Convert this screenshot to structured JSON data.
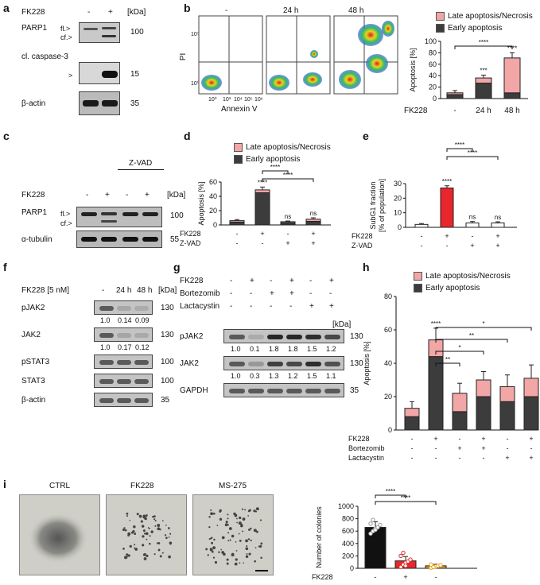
{
  "panels": {
    "a": "a",
    "b": "b",
    "c": "c",
    "d": "d",
    "e": "e",
    "f": "f",
    "g": "g",
    "h": "h",
    "i": "i"
  },
  "a": {
    "treatment_label": "FK228",
    "col_minus": "-",
    "col_plus": "+",
    "kda": "[kDa]",
    "rows": [
      {
        "name": "PARP1",
        "mw": "100"
      },
      {
        "name": "cl. caspase-3",
        "mw": "15"
      },
      {
        "name": "β-actin",
        "mw": "35"
      }
    ],
    "fl": "fl.>",
    "cf": "cf.>",
    "arrow": ">"
  },
  "b": {
    "col_labels": [
      "-",
      "24 h",
      "48 h"
    ],
    "ylabel": "PI",
    "xlabel": "Annexin V",
    "tick_lo": "10⁰",
    "tick_a": "10³",
    "tick_b": "10⁴",
    "tick_c": "10⁵",
    "tick_d": "10⁶",
    "y_tick_lo": "10⁰",
    "y_tick_hi": "10⁵"
  },
  "c": {
    "zvad": "Z-VAD",
    "treatment_label": "FK228",
    "kda": "[kDa]",
    "signs": [
      "-",
      "+",
      "-",
      "+"
    ],
    "rows": [
      {
        "name": "PARP1",
        "mw": "100"
      },
      {
        "name": "α-tubulin",
        "mw": "55"
      }
    ],
    "fl": "fl.>",
    "cf": "cf.>"
  },
  "f": {
    "header": "FK228 [5 nM]",
    "cols": [
      "-",
      "24 h",
      "48 h"
    ],
    "kda": "[kDa]",
    "rows": [
      {
        "name": "pJAK2",
        "mw": "130",
        "quant": [
          "1.0",
          "0.14",
          "0.09"
        ]
      },
      {
        "name": "JAK2",
        "mw": "130",
        "quant": [
          "1.0",
          "0.17",
          "0.12"
        ]
      },
      {
        "name": "pSTAT3",
        "mw": "100",
        "quant": []
      },
      {
        "name": "STAT3",
        "mw": "100",
        "quant": []
      },
      {
        "name": "β-actin",
        "mw": "35",
        "quant": []
      }
    ]
  },
  "g": {
    "treatments": [
      {
        "name": "FK228",
        "signs": [
          "-",
          "+",
          "-",
          "+",
          "-",
          "+"
        ]
      },
      {
        "name": "Bortezomib",
        "signs": [
          "-",
          "-",
          "+",
          "+",
          "-",
          "-"
        ]
      },
      {
        "name": "Lactacystin",
        "signs": [
          "-",
          "-",
          "-",
          "-",
          "+",
          "+"
        ]
      }
    ],
    "kda": "[kDa]",
    "rows": [
      {
        "name": "pJAK2",
        "mw": "130",
        "quant": [
          "1.0",
          "0.1",
          "1.8",
          "1.8",
          "1.5",
          "1.2"
        ]
      },
      {
        "name": "JAK2",
        "mw": "130",
        "quant": [
          "1.0",
          "0.3",
          "1.3",
          "1.2",
          "1.5",
          "1.1"
        ]
      },
      {
        "name": "GAPDH",
        "mw": "35",
        "quant": []
      }
    ]
  },
  "i": {
    "images": [
      "CTRL",
      "FK228",
      "MS-275"
    ]
  },
  "legend": {
    "late": "Late apoptosis/Necrosis",
    "early": "Early apoptosis"
  },
  "colors": {
    "late": "#f2a6a6",
    "early": "#3c3c3c",
    "red": "#e8262b",
    "white_bar": "#ffffff",
    "orange_pts": "#e8a020",
    "red_pts": "#d83030"
  },
  "chart_data": [
    {
      "id": "b",
      "type": "bar",
      "stacked": true,
      "ylabel": "Apoptosis [%]",
      "ylim": [
        0,
        100
      ],
      "yticks": [
        0,
        20,
        40,
        60,
        80,
        100
      ],
      "categories": [
        "-",
        "24 h",
        "48 h"
      ],
      "row_label": "FK228",
      "series": [
        {
          "name": "Early apoptosis",
          "values": [
            7,
            27,
            10
          ]
        },
        {
          "name": "Late apoptosis/Necrosis",
          "values": [
            3,
            9,
            61
          ]
        }
      ],
      "errors": [
        4,
        5,
        9
      ],
      "annotations": [
        {
          "text": "***",
          "bar": 1
        },
        {
          "text": "****",
          "bar": 2
        }
      ],
      "brackets": [
        {
          "from": 0,
          "to": 2,
          "text": "****"
        }
      ]
    },
    {
      "id": "d",
      "type": "bar",
      "stacked": true,
      "ylabel": "Apoptosis [%]",
      "ylim": [
        0,
        60
      ],
      "yticks": [
        0,
        20,
        40,
        60
      ],
      "rows": [
        {
          "name": "FK228",
          "signs": [
            "-",
            "+",
            "-",
            "+"
          ]
        },
        {
          "name": "Z-VAD",
          "signs": [
            "-",
            "-",
            "+",
            "+"
          ]
        }
      ],
      "series": [
        {
          "name": "Early apoptosis",
          "values": [
            4,
            45,
            3,
            5
          ]
        },
        {
          "name": "Late apoptosis/Necrosis",
          "values": [
            2,
            4,
            1.5,
            3
          ]
        }
      ],
      "errors": [
        1.5,
        4,
        1,
        2
      ],
      "annotations": [
        {
          "text": "****",
          "bar": 1
        },
        {
          "text": "ns",
          "bar": 2
        },
        {
          "text": "ns",
          "bar": 3
        }
      ],
      "brackets": [
        {
          "from": 1,
          "to": 2,
          "text": "****"
        },
        {
          "from": 1,
          "to": 3,
          "text": "****"
        }
      ]
    },
    {
      "id": "e",
      "type": "bar",
      "stacked": false,
      "ylabel": "SubG1 fraction [% of population]",
      "ylim": [
        0,
        30
      ],
      "yticks": [
        0,
        10,
        20,
        30
      ],
      "rows": [
        {
          "name": "FK228",
          "signs": [
            "-",
            "+",
            "-",
            "+"
          ]
        },
        {
          "name": "Z-VAD",
          "signs": [
            "-",
            "-",
            "+",
            "+"
          ]
        }
      ],
      "values": [
        2,
        27,
        3,
        3
      ],
      "errors": [
        0.6,
        1.5,
        1,
        0.8
      ],
      "annotations": [
        {
          "text": "****",
          "bar": 1
        },
        {
          "text": "ns",
          "bar": 2
        },
        {
          "text": "ns",
          "bar": 3
        }
      ],
      "brackets": [
        {
          "from": 1,
          "to": 2,
          "text": "****"
        },
        {
          "from": 1,
          "to": 3,
          "text": "****"
        }
      ]
    },
    {
      "id": "h",
      "type": "bar",
      "stacked": true,
      "ylabel": "Apoptosis [%]",
      "ylim": [
        0,
        80
      ],
      "yticks": [
        0,
        20,
        40,
        60,
        80
      ],
      "rows": [
        {
          "name": "FK228",
          "signs": [
            "-",
            "+",
            "-",
            "+",
            "-",
            "+"
          ]
        },
        {
          "name": "Bortezomib",
          "signs": [
            "-",
            "-",
            "+",
            "+",
            "-",
            "-"
          ]
        },
        {
          "name": "Lactacystin",
          "signs": [
            "-",
            "-",
            "-",
            "-",
            "+",
            "+"
          ]
        }
      ],
      "series": [
        {
          "name": "Early apoptosis",
          "values": [
            8,
            44,
            11,
            20,
            17,
            20
          ]
        },
        {
          "name": "Late apoptosis/Necrosis",
          "values": [
            5,
            10,
            11,
            10,
            9,
            11
          ]
        }
      ],
      "errors": [
        4,
        7,
        6,
        5,
        7,
        8
      ],
      "annotations": [
        {
          "text": "****",
          "bar": 1
        }
      ],
      "brackets": [
        {
          "from": 1,
          "to": 2,
          "text": "**"
        },
        {
          "from": 1,
          "to": 3,
          "text": "*"
        },
        {
          "from": 1,
          "to": 4,
          "text": "**"
        },
        {
          "from": 1,
          "to": 5,
          "text": "*"
        }
      ]
    },
    {
      "id": "i",
      "type": "bar",
      "stacked": false,
      "ylabel": "Number of colonies",
      "ylim": [
        0,
        1000
      ],
      "yticks": [
        0,
        200,
        400,
        600,
        800,
        1000
      ],
      "rows": [
        {
          "name": "FK228",
          "signs": [
            "-",
            "+",
            "-"
          ]
        }
      ],
      "values": [
        660,
        120,
        40
      ],
      "errors": [
        90,
        70,
        25
      ],
      "points": [
        [
          560,
          600,
          640,
          660,
          700,
          720,
          780,
          620
        ],
        [
          20,
          60,
          90,
          110,
          140,
          200,
          250,
          40
        ],
        [
          10,
          20,
          30,
          40,
          50,
          60,
          20
        ]
      ],
      "brackets": [
        {
          "from": 0,
          "to": 1,
          "text": "****"
        },
        {
          "from": 0,
          "to": 2,
          "text": "****"
        }
      ]
    }
  ]
}
